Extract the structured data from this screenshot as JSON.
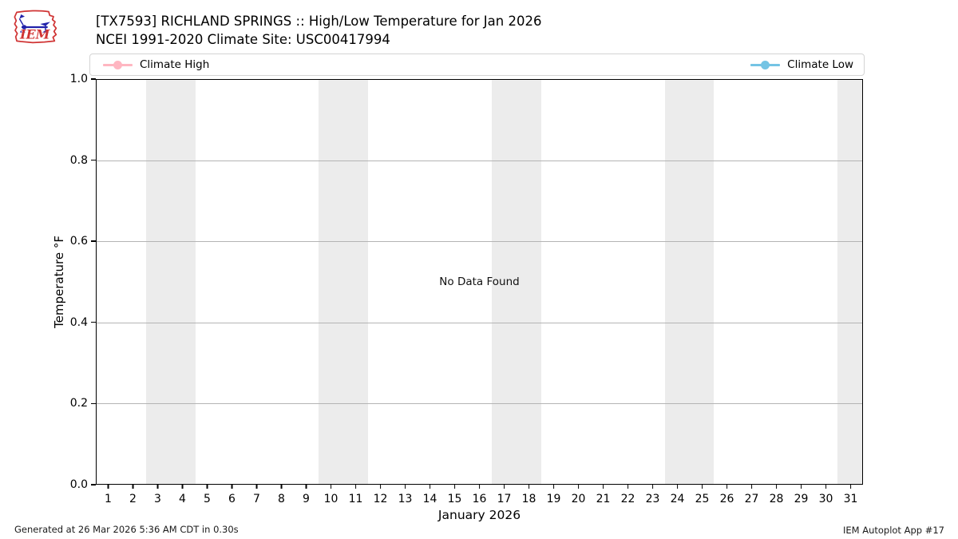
{
  "header": {
    "title_line1": "[TX7593] RICHLAND SPRINGS :: High/Low Temperature for Jan 2026",
    "title_line2": "NCEI 1991-2020 Climate Site: USC00417994",
    "logo_text": "IEM"
  },
  "legend": {
    "items": [
      {
        "label": "Climate High",
        "color": "#ffb6c1"
      },
      {
        "label": "Climate Low",
        "color": "#74c4e4"
      }
    ]
  },
  "chart_data": {
    "type": "line",
    "title": "[TX7593] RICHLAND SPRINGS :: High/Low Temperature for Jan 2026",
    "subtitle": "NCEI 1991-2020 Climate Site: USC00417994",
    "xlabel": "January 2026",
    "ylabel": "Temperature °F",
    "xlim": [
      0.5,
      31.5
    ],
    "ylim": [
      0.0,
      1.0
    ],
    "x_ticks": [
      1,
      2,
      3,
      4,
      5,
      6,
      7,
      8,
      9,
      10,
      11,
      12,
      13,
      14,
      15,
      16,
      17,
      18,
      19,
      20,
      21,
      22,
      23,
      24,
      25,
      26,
      27,
      28,
      29,
      30,
      31
    ],
    "y_ticks": [
      "0.0",
      "0.2",
      "0.4",
      "0.6",
      "0.8",
      "1.0"
    ],
    "grid_values": [
      0.2,
      0.4,
      0.6,
      0.8
    ],
    "grid": true,
    "legend_position": "top, expanded full width",
    "weekend_bands": [
      [
        2.5,
        4.5
      ],
      [
        9.5,
        11.5
      ],
      [
        16.5,
        18.5
      ],
      [
        23.5,
        25.5
      ],
      [
        30.5,
        31.5
      ]
    ],
    "band_color": "#ececec",
    "series": [
      {
        "name": "Climate High",
        "color": "#ffb6c1",
        "values": []
      },
      {
        "name": "Climate Low",
        "color": "#74c4e4",
        "values": []
      }
    ],
    "annotation": "No Data Found"
  },
  "footer": {
    "generated": "Generated at 26 Mar 2026 5:36 AM CDT in 0.30s",
    "app": "IEM Autoplot App #17"
  }
}
